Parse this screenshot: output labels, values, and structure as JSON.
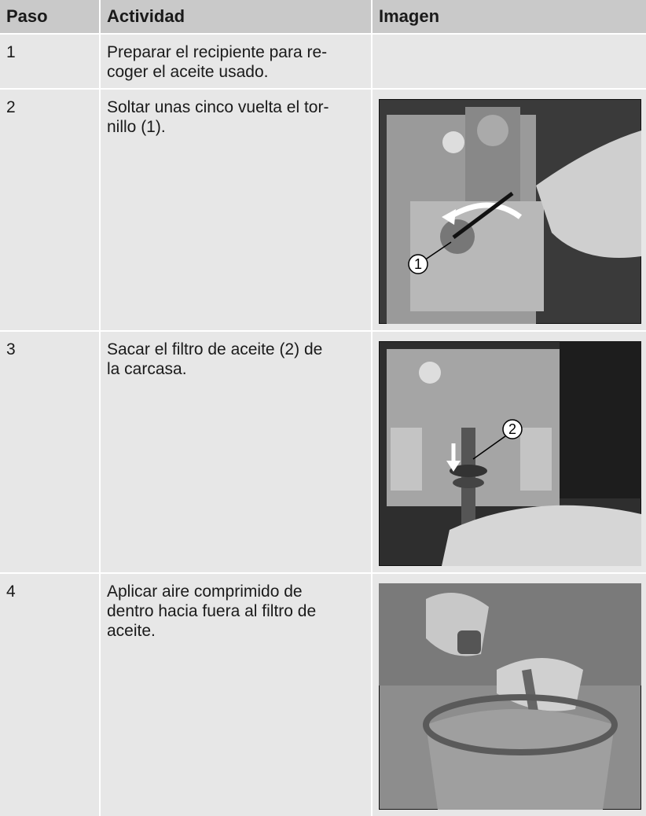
{
  "table": {
    "header": [
      "Paso",
      "Actividad",
      "Imagen"
    ],
    "rows": [
      {
        "step": "1",
        "activity": [
          "Preparar el recipiente para re-",
          "coger el aceite usado."
        ]
      },
      {
        "step": "2",
        "activity": [
          "Soltar unas cinco vuelta el tor-",
          "nillo (1)."
        ],
        "callout": "1"
      },
      {
        "step": "3",
        "activity": [
          "Sacar el filtro de aceite (2) de",
          "la carcasa."
        ],
        "callout": "2"
      },
      {
        "step": "4",
        "activity": [
          "Aplicar aire comprimido de",
          "dentro hacia fuera al filtro de",
          "aceite."
        ]
      }
    ]
  }
}
